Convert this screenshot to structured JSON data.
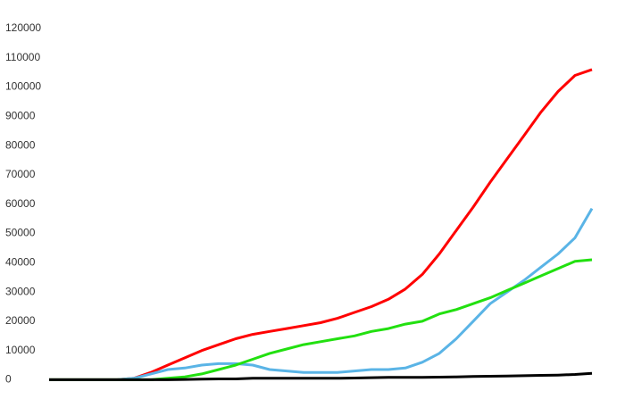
{
  "chart_data": {
    "type": "line",
    "categories": [
      null,
      null,
      null,
      null,
      null,
      null,
      null,
      null,
      null,
      null,
      null,
      null,
      null,
      null,
      null,
      null,
      null,
      null,
      null,
      null,
      null,
      null,
      null,
      null,
      null,
      null,
      null,
      null,
      null,
      null,
      null,
      null,
      null
    ],
    "series": [
      {
        "color": "#ff0000",
        "values": [
          0,
          0,
          0,
          0,
          0,
          500,
          2500,
          5000,
          7500,
          10000,
          12000,
          14000,
          15500,
          16500,
          17500,
          18500,
          19500,
          21000,
          23000,
          25000,
          27500,
          31000,
          36000,
          43000,
          51000,
          59000,
          67500,
          75500,
          83500,
          91500,
          98500,
          104000,
          106000
        ]
      },
      {
        "color": "#5ab4e6",
        "values": [
          0,
          0,
          0,
          0,
          0,
          500,
          2000,
          3500,
          4000,
          5000,
          5500,
          5500,
          5000,
          3500,
          3000,
          2500,
          2500,
          2500,
          3000,
          3500,
          3500,
          4000,
          6000,
          9000,
          14000,
          20000,
          26000,
          30000,
          34000,
          38500,
          43000,
          48500,
          58500
        ]
      },
      {
        "color": "#22e010",
        "values": [
          0,
          0,
          0,
          0,
          0,
          0,
          0,
          500,
          1000,
          2000,
          3500,
          5000,
          7000,
          9000,
          10500,
          12000,
          13000,
          14000,
          15000,
          16500,
          17500,
          19000,
          20000,
          22500,
          24000,
          26000,
          28000,
          30500,
          33000,
          35500,
          38000,
          40500,
          41000
        ]
      },
      {
        "color": "#000000",
        "values": [
          0,
          0,
          0,
          0,
          0,
          0,
          0,
          0,
          100,
          200,
          300,
          300,
          500,
          500,
          500,
          500,
          500,
          500,
          600,
          700,
          800,
          800,
          800,
          900,
          1000,
          1100,
          1200,
          1300,
          1400,
          1500,
          1600,
          1800,
          2200
        ]
      }
    ],
    "ylim": [
      -2000,
      120000
    ],
    "yticks": [
      0,
      10000,
      20000,
      30000,
      40000,
      50000,
      60000,
      70000,
      80000,
      90000,
      100000,
      110000,
      120000
    ],
    "grid": false
  }
}
